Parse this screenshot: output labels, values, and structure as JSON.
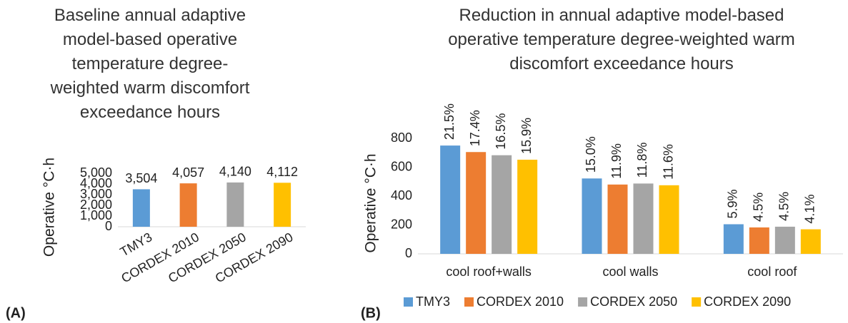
{
  "chart_data": [
    {
      "type": "bar",
      "title": "Baseline annual adaptive model-based operative temperature degree-weighted warm discomfort exceedance hours",
      "panel_label": "(A)",
      "ylabel": "Operative °C·h",
      "categories": [
        "TMY3",
        "CORDEX 2010",
        "CORDEX 2050",
        "CORDEX 2090"
      ],
      "values": [
        3504,
        4057,
        4140,
        4112
      ],
      "value_labels": [
        "3,504",
        "4,057",
        "4,140",
        "4,112"
      ],
      "colors": [
        "#5b9bd5",
        "#ed7d31",
        "#a5a5a5",
        "#ffc000"
      ],
      "ylim": [
        0,
        5000
      ],
      "yticks": [
        0,
        {
          "value": 1000,
          "label": "1,000"
        },
        {
          "value": 2000,
          "label": "2,000"
        },
        {
          "value": 3000,
          "label": "3,000"
        },
        {
          "value": 4000,
          "label": "4,000"
        },
        {
          "value": 5000,
          "label": "5,000"
        }
      ],
      "grid": false
    },
    {
      "type": "grouped_bar",
      "title": "Reduction in annual adaptive model-based operative temperature degree-weighted warm discomfort exceedance hours",
      "panel_label": "(B)",
      "ylabel": "Operative °C·h",
      "categories": [
        "cool roof+walls",
        "cool walls",
        "cool roof"
      ],
      "series": [
        {
          "name": "TMY3",
          "color": "#5b9bd5",
          "values": [
            750,
            522,
            205
          ],
          "percent_labels": [
            "21.5%",
            "15.0%",
            "5.9%"
          ]
        },
        {
          "name": "CORDEX 2010",
          "color": "#ed7d31",
          "values": [
            705,
            480,
            183
          ],
          "percent_labels": [
            "17.4%",
            "11.9%",
            "4.5%"
          ]
        },
        {
          "name": "CORDEX 2050",
          "color": "#a5a5a5",
          "values": [
            683,
            487,
            188
          ],
          "percent_labels": [
            "16.5%",
            "11.8%",
            "4.5%"
          ]
        },
        {
          "name": "CORDEX 2090",
          "color": "#ffc000",
          "values": [
            652,
            475,
            170
          ],
          "percent_labels": [
            "15.9%",
            "11.6%",
            "4.1%"
          ]
        }
      ],
      "ylim": [
        0,
        800
      ],
      "yticks": [
        0,
        200,
        400,
        600,
        800
      ],
      "grid": false,
      "legend": "bottom"
    }
  ]
}
